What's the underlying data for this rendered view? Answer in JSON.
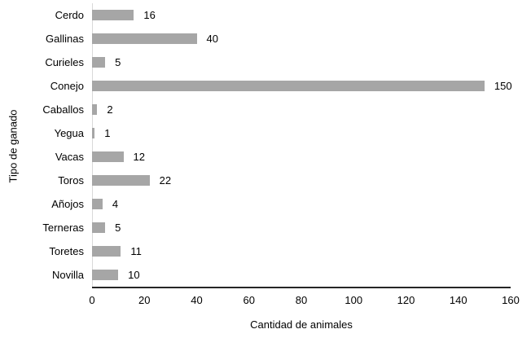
{
  "chart_data": {
    "type": "bar",
    "orientation": "horizontal",
    "categories": [
      "Cerdo",
      "Gallinas",
      "Curieles",
      "Conejo",
      "Caballos",
      "Yegua",
      "Vacas",
      "Toros",
      "Añojos",
      "Terneras",
      "Toretes",
      "Novilla"
    ],
    "values": [
      16,
      40,
      5,
      150,
      2,
      1,
      12,
      22,
      4,
      5,
      11,
      10
    ],
    "title": "",
    "xlabel": "Cantidad de animales",
    "ylabel": "Tipo de ganado",
    "xlim": [
      0,
      160
    ],
    "xticks": [
      0,
      20,
      40,
      60,
      80,
      100,
      120,
      140,
      160
    ],
    "data_labels": true,
    "grid": false,
    "legend": false,
    "colors": {
      "bar": "#a6a6a6",
      "axis_line": "#262626",
      "zero_line": "#d9d9d9",
      "text": "#000000",
      "background": "#ffffff"
    }
  }
}
